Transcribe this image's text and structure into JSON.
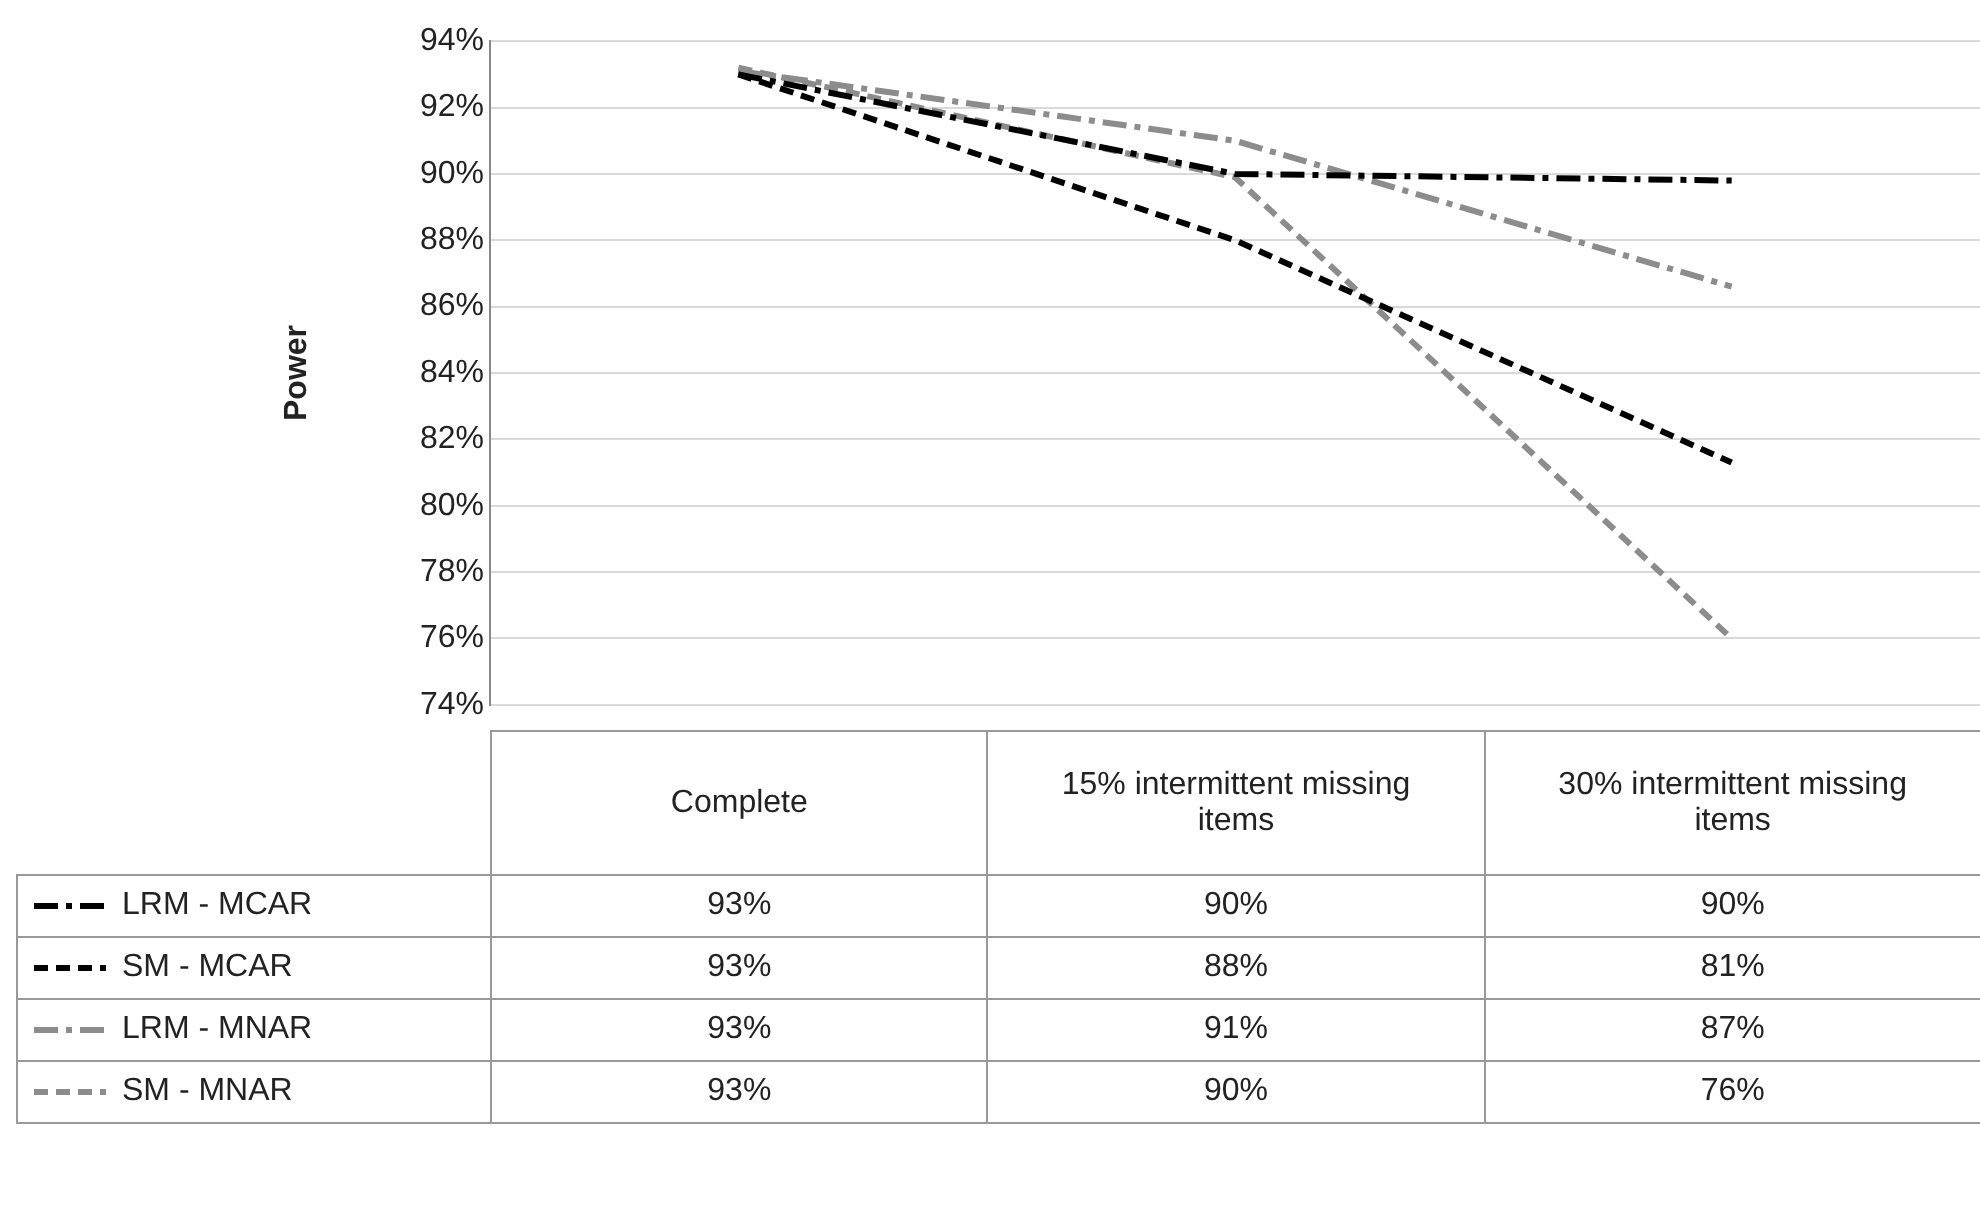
{
  "chart_data": {
    "type": "line",
    "ylabel": "Power",
    "categories": [
      "Complete",
      "15% intermittent missing items",
      "30% intermittent missing items"
    ],
    "series": [
      {
        "name": "LRM - MCAR",
        "color": "#000000",
        "line_style": "dashdot",
        "values": [
          93.0,
          90.0,
          89.8
        ],
        "value_labels": [
          "93%",
          "90%",
          "90%"
        ]
      },
      {
        "name": "SM - MCAR",
        "color": "#000000",
        "line_style": "dashed",
        "values": [
          93.0,
          88.0,
          81.3
        ],
        "value_labels": [
          "93%",
          "88%",
          "81%"
        ]
      },
      {
        "name": "LRM - MNAR",
        "color": "#8c8c8c",
        "line_style": "dashdot",
        "values": [
          93.1,
          91.0,
          86.6
        ],
        "value_labels": [
          "93%",
          "91%",
          "87%"
        ]
      },
      {
        "name": "SM - MNAR",
        "color": "#8c8c8c",
        "line_style": "dashed",
        "values": [
          93.2,
          89.9,
          76.0
        ],
        "value_labels": [
          "93%",
          "90%",
          "76%"
        ]
      }
    ],
    "ylim": [
      74,
      94
    ],
    "yticks": [
      {
        "value": 74,
        "label": "74%"
      },
      {
        "value": 76,
        "label": "76%"
      },
      {
        "value": 78,
        "label": "78%"
      },
      {
        "value": 80,
        "label": "80%"
      },
      {
        "value": 82,
        "label": "82%"
      },
      {
        "value": 84,
        "label": "84%"
      },
      {
        "value": 86,
        "label": "86%"
      },
      {
        "value": 88,
        "label": "88%"
      },
      {
        "value": 90,
        "label": "90%"
      },
      {
        "value": 92,
        "label": "92%"
      },
      {
        "value": 94,
        "label": "94%"
      }
    ],
    "grid": "y",
    "marker": "none",
    "legend": "bottom left"
  }
}
